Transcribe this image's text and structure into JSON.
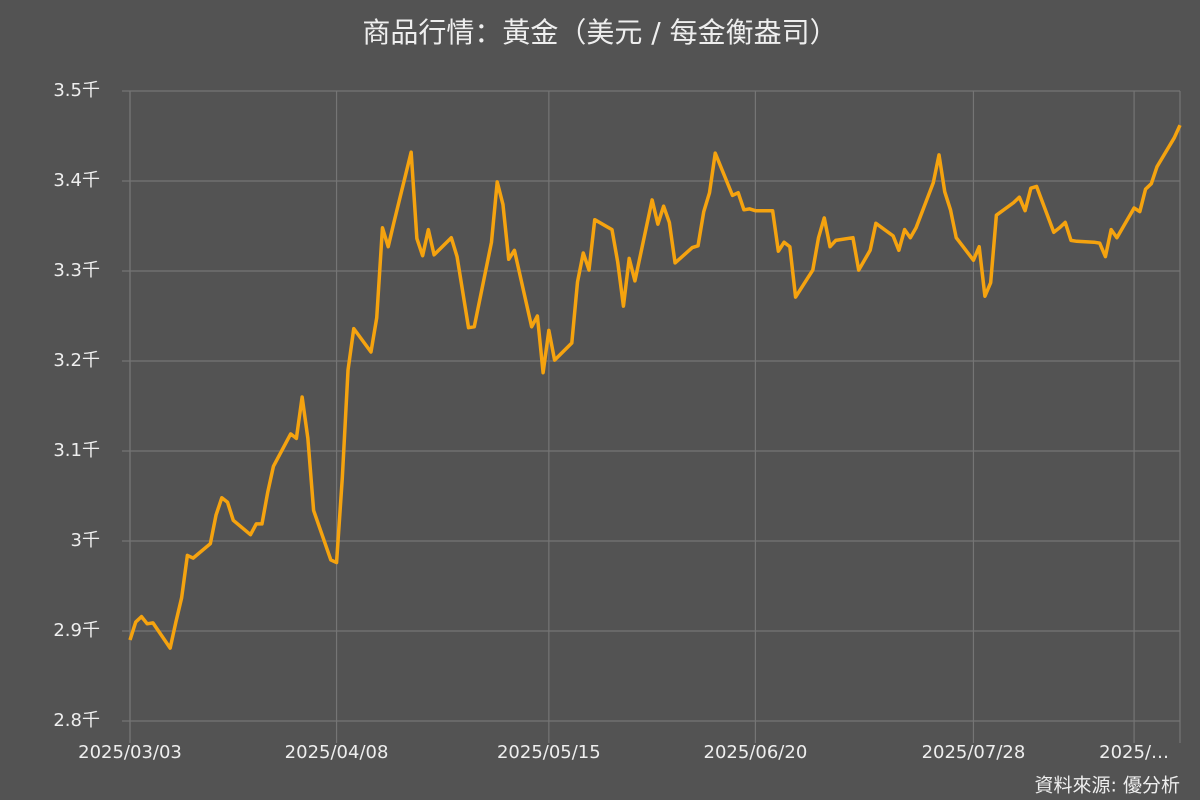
{
  "chart_data": {
    "type": "line",
    "title": "商品行情：黃金（美元 / 每金衡盎司）",
    "source": "資料來源: 優分析",
    "color": "#f5a30f",
    "grid": true,
    "x": [
      "2025/03/03",
      "2025/03/04",
      "2025/03/05",
      "2025/03/06",
      "2025/03/07",
      "2025/03/10",
      "2025/03/11",
      "2025/03/12",
      "2025/03/13",
      "2025/03/14",
      "2025/03/17",
      "2025/03/18",
      "2025/03/19",
      "2025/03/20",
      "2025/03/21",
      "2025/03/24",
      "2025/03/25",
      "2025/03/26",
      "2025/03/27",
      "2025/03/28",
      "2025/03/31",
      "2025/04/01",
      "2025/04/02",
      "2025/04/03",
      "2025/04/04",
      "2025/04/07",
      "2025/04/08",
      "2025/04/09",
      "2025/04/10",
      "2025/04/11",
      "2025/04/14",
      "2025/04/15",
      "2025/04/16",
      "2025/04/17",
      "2025/04/18",
      "2025/04/21",
      "2025/04/22",
      "2025/04/23",
      "2025/04/24",
      "2025/04/25",
      "2025/04/28",
      "2025/04/29",
      "2025/05/01",
      "2025/05/02",
      "2025/05/05",
      "2025/05/06",
      "2025/05/07",
      "2025/05/08",
      "2025/05/09",
      "2025/05/12",
      "2025/05/13",
      "2025/05/14",
      "2025/05/15",
      "2025/05/16",
      "2025/05/19",
      "2025/05/20",
      "2025/05/21",
      "2025/05/22",
      "2025/05/23",
      "2025/05/26",
      "2025/05/27",
      "2025/05/28",
      "2025/05/29",
      "2025/05/30",
      "2025/06/02",
      "2025/06/03",
      "2025/06/04",
      "2025/06/05",
      "2025/06/06",
      "2025/06/09",
      "2025/06/10",
      "2025/06/11",
      "2025/06/12",
      "2025/06/13",
      "2025/06/16",
      "2025/06/17",
      "2025/06/18",
      "2025/06/19",
      "2025/06/20",
      "2025/06/23",
      "2025/06/24",
      "2025/06/25",
      "2025/06/26",
      "2025/06/27",
      "2025/06/30",
      "2025/07/01",
      "2025/07/02",
      "2025/07/03",
      "2025/07/04",
      "2025/07/07",
      "2025/07/08",
      "2025/07/10",
      "2025/07/11",
      "2025/07/14",
      "2025/07/15",
      "2025/07/16",
      "2025/07/17",
      "2025/07/18",
      "2025/07/21",
      "2025/07/22",
      "2025/07/23",
      "2025/07/24",
      "2025/07/25",
      "2025/07/28",
      "2025/07/29",
      "2025/07/30",
      "2025/07/31",
      "2025/08/01",
      "2025/08/04",
      "2025/08/05",
      "2025/08/06",
      "2025/08/07",
      "2025/08/08",
      "2025/08/11",
      "2025/08/12",
      "2025/08/13",
      "2025/08/14",
      "2025/08/15",
      "2025/08/18",
      "2025/08/19",
      "2025/08/20",
      "2025/08/21",
      "2025/08/22",
      "2025/08/25",
      "2025/08/26",
      "2025/08/27",
      "2025/08/28",
      "2025/08/29",
      "2025/09/01",
      "2025/09/02"
    ],
    "values": [
      2.89,
      2.91,
      2.916,
      2.908,
      2.909,
      2.881,
      2.91,
      2.937,
      2.984,
      2.981,
      2.997,
      3.029,
      3.048,
      3.043,
      3.023,
      3.007,
      3.019,
      3.019,
      3.054,
      3.083,
      3.119,
      3.114,
      3.16,
      3.114,
      3.034,
      2.979,
      2.976,
      3.07,
      3.19,
      3.236,
      3.21,
      3.248,
      3.348,
      3.327,
      3.354,
      3.432,
      3.336,
      3.317,
      3.346,
      3.318,
      3.337,
      3.316,
      3.237,
      3.238,
      3.332,
      3.399,
      3.374,
      3.313,
      3.323,
      3.238,
      3.25,
      3.187,
      3.234,
      3.201,
      3.22,
      3.288,
      3.32,
      3.301,
      3.357,
      3.346,
      3.31,
      3.261,
      3.314,
      3.289,
      3.379,
      3.352,
      3.372,
      3.354,
      3.309,
      3.326,
      3.328,
      3.366,
      3.387,
      3.431,
      3.384,
      3.387,
      3.368,
      3.369,
      3.367,
      3.367,
      3.322,
      3.332,
      3.327,
      3.271,
      3.301,
      3.337,
      3.359,
      3.327,
      3.334,
      3.337,
      3.301,
      3.323,
      3.353,
      3.339,
      3.323,
      3.346,
      3.337,
      3.348,
      3.398,
      3.429,
      3.388,
      3.368,
      3.337,
      3.312,
      3.327,
      3.272,
      3.287,
      3.362,
      3.376,
      3.382,
      3.367,
      3.392,
      3.394,
      3.343,
      3.348,
      3.354,
      3.334,
      3.333,
      3.332,
      3.331,
      3.316,
      3.346,
      3.337,
      3.37,
      3.366,
      3.391,
      3.397,
      3.416,
      3.448,
      3.462
    ],
    "xlim": [
      "2025/03/03",
      "2025/09/02"
    ],
    "xticks": [
      "2025/03/03",
      "2025/04/08",
      "2025/05/15",
      "2025/06/20",
      "2025/07/28",
      {
        "value": "2025/08/25",
        "label": "2025/…"
      }
    ],
    "ylim": [
      2.8,
      3.5
    ],
    "yticks": [
      {
        "value": 2.8,
        "label": "2.8千"
      },
      {
        "value": 2.9,
        "label": "2.9千"
      },
      {
        "value": 3,
        "label": "3千"
      },
      {
        "value": 3.1,
        "label": "3.1千"
      },
      {
        "value": 3.2,
        "label": "3.2千"
      },
      {
        "value": 3.3,
        "label": "3.3千"
      },
      {
        "value": 3.4,
        "label": "3.4千"
      },
      {
        "value": 3.5,
        "label": "3.5千"
      }
    ]
  }
}
